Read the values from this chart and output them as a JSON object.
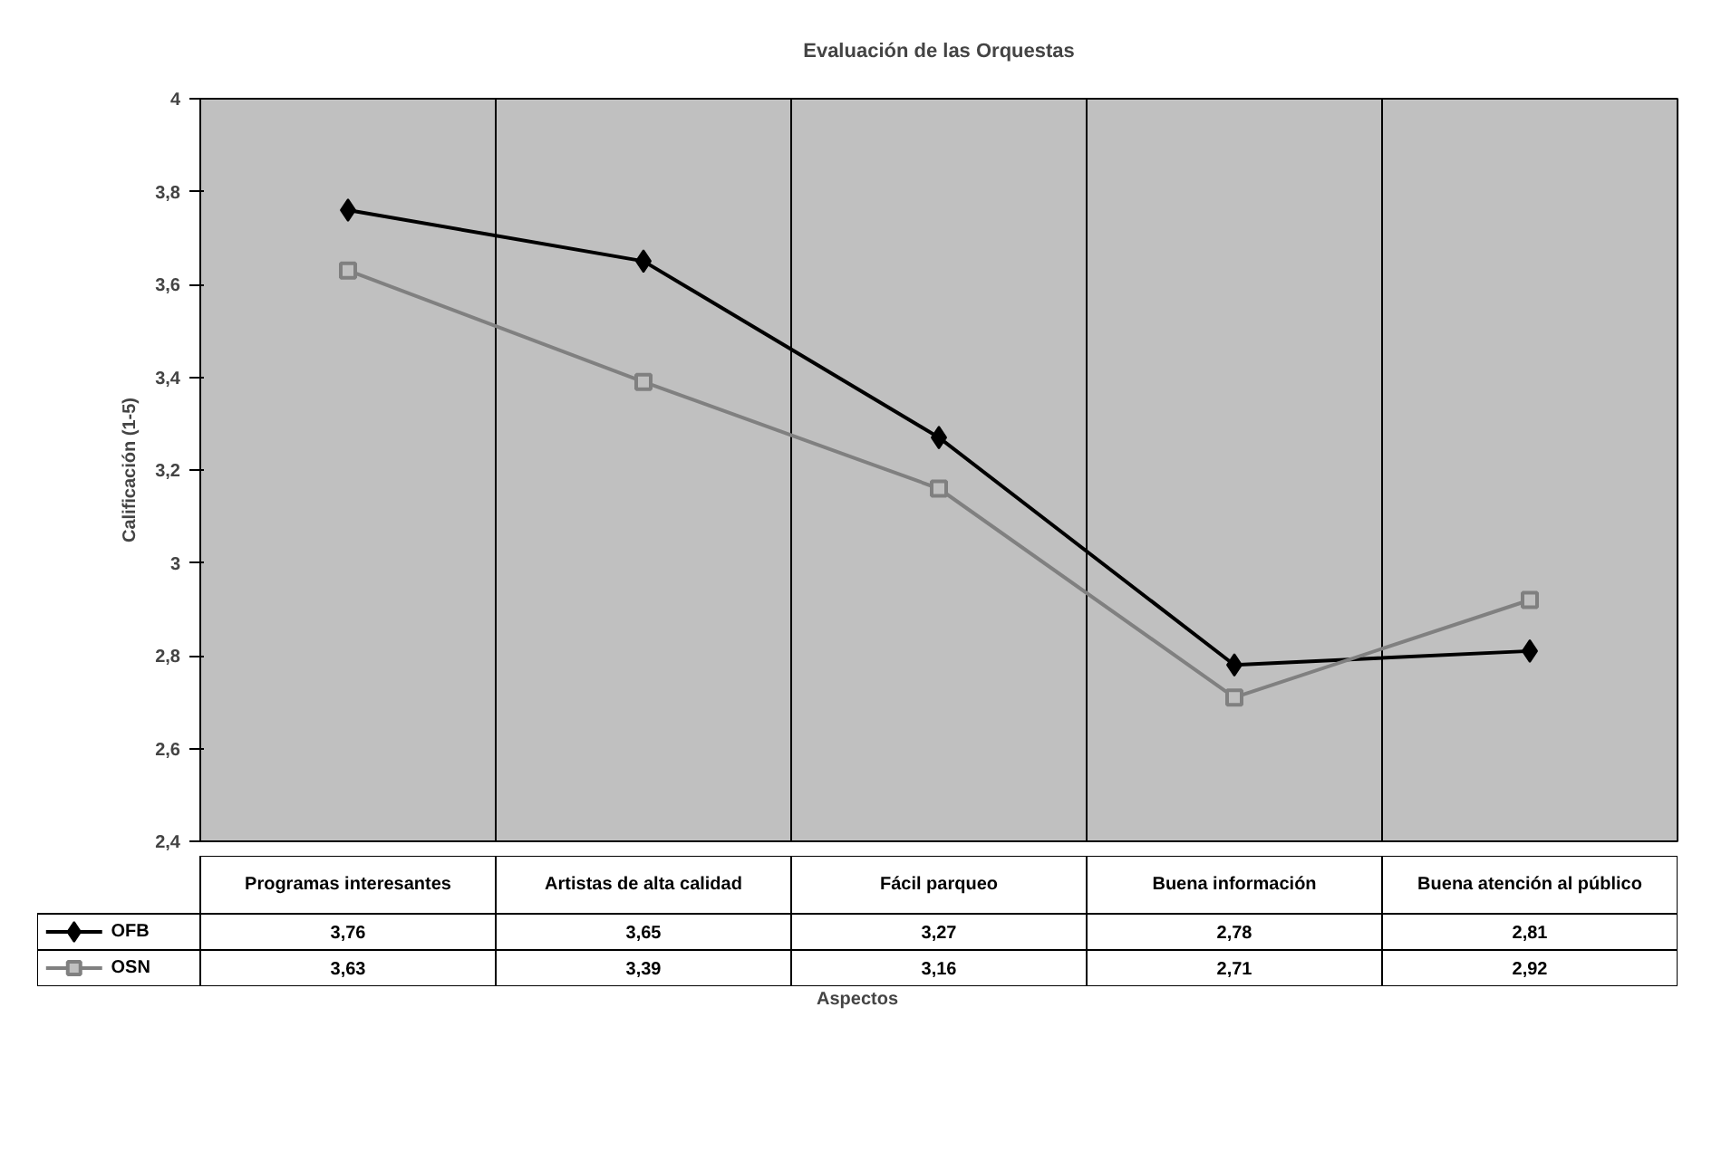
{
  "chart_data": {
    "type": "line",
    "title": "Evaluación de las Orquestas",
    "annotations": [
      "Aspectos"
    ],
    "ylabel": "Calificación (1-5)",
    "categories": [
      "Programas interesantes",
      "Artistas de alta calidad",
      "Fácil parqueo",
      "Buena información",
      "Buena atención al público"
    ],
    "series": [
      {
        "name": "OFB",
        "color": "#000000",
        "marker": "diamond",
        "values": [
          3.76,
          3.65,
          3.27,
          2.78,
          2.81
        ],
        "value_labels": [
          "3,76",
          "3,65",
          "3,27",
          "2,78",
          "2,81"
        ]
      },
      {
        "name": "OSN",
        "color": "#808080",
        "marker": "square",
        "values": [
          3.63,
          3.39,
          3.16,
          2.71,
          2.92
        ],
        "value_labels": [
          "3,63",
          "3,39",
          "3,16",
          "2,71",
          "2,92"
        ]
      }
    ],
    "ylim": [
      2.4,
      4
    ],
    "yticks": [
      {
        "value": 2.4,
        "label": "2,4"
      },
      {
        "value": 2.6,
        "label": "2,6"
      },
      {
        "value": 2.8,
        "label": "2,8"
      },
      3,
      {
        "value": 3.2,
        "label": "3,2"
      },
      {
        "value": 3.4,
        "label": "3,4"
      },
      {
        "value": 3.6,
        "label": "3,6"
      },
      {
        "value": 3.8,
        "label": "3,8"
      },
      4
    ],
    "grid": "x",
    "legend": "bottom",
    "line_style": "solid"
  }
}
